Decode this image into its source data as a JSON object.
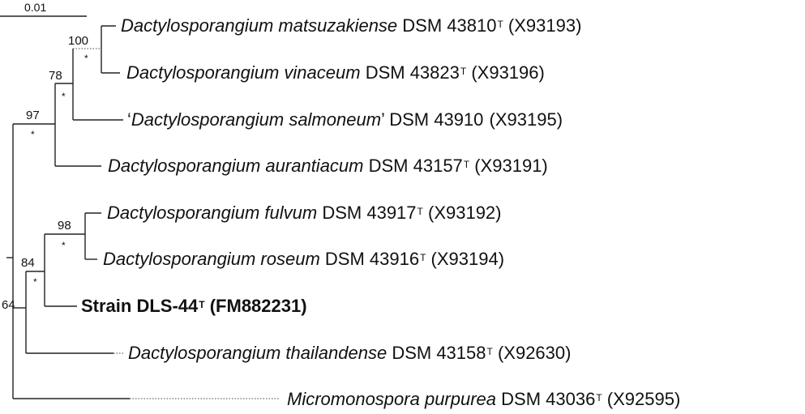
{
  "scale_bar": {
    "label": "0.01"
  },
  "taxa": [
    {
      "id": "matsuzakiense",
      "pre": "",
      "genus_species": "Dactylosporangium matsuzakiense",
      "post_quote": "",
      "strain": " DSM 43810",
      "type_mark": "T",
      "accession": " (X93193)"
    },
    {
      "id": "vinaceum",
      "pre": "",
      "genus_species": "Dactylosporangium vinaceum",
      "post_quote": "",
      "strain": " DSM 43823",
      "type_mark": "T",
      "accession": " (X93196)"
    },
    {
      "id": "salmoneum",
      "pre": "‘",
      "genus_species": "Dactylosporangium salmoneum",
      "post_quote": "’",
      "strain": " DSM 43910",
      "type_mark": "",
      "accession": " (X93195)"
    },
    {
      "id": "aurantiacum",
      "pre": "",
      "genus_species": "Dactylosporangium aurantiacum",
      "post_quote": "",
      "strain": " DSM 43157",
      "type_mark": "T",
      "accession": " (X93191)"
    },
    {
      "id": "fulvum",
      "pre": "",
      "genus_species": "Dactylosporangium fulvum",
      "post_quote": "",
      "strain": " DSM 43917",
      "type_mark": "T",
      "accession": " (X93192)"
    },
    {
      "id": "roseum",
      "pre": "",
      "genus_species": "Dactylosporangium roseum",
      "post_quote": "",
      "strain": " DSM 43916",
      "type_mark": "T",
      "accession": " (X93194)"
    },
    {
      "id": "dls44",
      "pre": "",
      "genus_species": "",
      "post_quote": "",
      "strain": "Strain DLS-44",
      "type_mark": "T",
      "accession": " (FM882231)"
    },
    {
      "id": "thailandense",
      "pre": "",
      "genus_species": "Dactylosporangium thailandense",
      "post_quote": "",
      "strain": " DSM 43158",
      "type_mark": "T",
      "accession": " (X92630)"
    },
    {
      "id": "purpurea",
      "pre": "",
      "genus_species": "Micromonospora purpurea",
      "post_quote": "",
      "strain": " DSM 43036",
      "type_mark": "T",
      "accession": " (X92595)"
    }
  ],
  "bootstrap": {
    "n100": "100",
    "n78": "78",
    "n97": "97",
    "n98": "98",
    "n84": "84",
    "n64": "64"
  },
  "node_marker": "*"
}
